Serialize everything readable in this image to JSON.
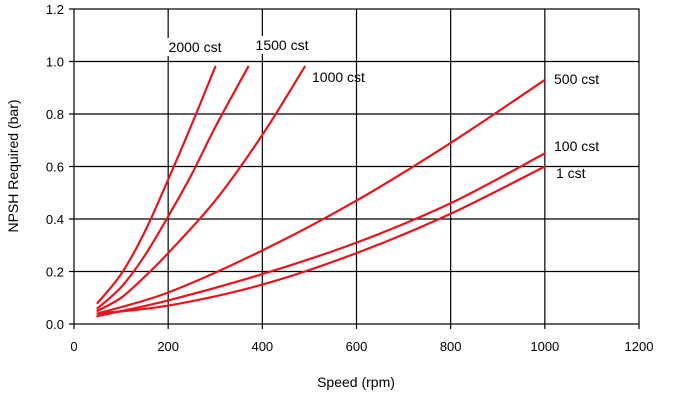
{
  "chart_data": {
    "type": "line",
    "title": "",
    "xlabel": "Speed (rpm)",
    "ylabel": "NPSH Required (bar)",
    "xlim": [
      0,
      1200
    ],
    "ylim": [
      0,
      1.2
    ],
    "xticks": [
      0,
      200,
      400,
      600,
      800,
      1000,
      1200
    ],
    "yticks": [
      0.0,
      0.2,
      0.4,
      0.6,
      0.8,
      1.0,
      1.2
    ],
    "xtick_labels": [
      "0",
      "200",
      "400",
      "600",
      "800",
      "1000",
      "1200"
    ],
    "ytick_labels": [
      "0.0",
      "0.2",
      "0.4",
      "0.6",
      "0.8",
      "1.0",
      "1.2"
    ],
    "grid": true,
    "legend": "none (series labelled directly on curves)",
    "line_color": "#e8141c",
    "series": [
      {
        "name": "2000 cst",
        "x": [
          50,
          100,
          150,
          200,
          250,
          300
        ],
        "y": [
          0.08,
          0.19,
          0.35,
          0.55,
          0.76,
          0.98
        ]
      },
      {
        "name": "1500 cst",
        "x": [
          50,
          100,
          150,
          200,
          250,
          300,
          370
        ],
        "y": [
          0.06,
          0.14,
          0.26,
          0.41,
          0.57,
          0.75,
          0.98
        ]
      },
      {
        "name": "1000 cst",
        "x": [
          50,
          100,
          150,
          200,
          300,
          400,
          490
        ],
        "y": [
          0.05,
          0.1,
          0.18,
          0.27,
          0.47,
          0.72,
          0.98
        ]
      },
      {
        "name": "500 cst",
        "x": [
          50,
          200,
          400,
          600,
          800,
          1000
        ],
        "y": [
          0.04,
          0.12,
          0.28,
          0.47,
          0.69,
          0.93
        ]
      },
      {
        "name": "100 cst",
        "x": [
          50,
          200,
          400,
          600,
          800,
          1000
        ],
        "y": [
          0.03,
          0.09,
          0.19,
          0.31,
          0.46,
          0.65
        ]
      },
      {
        "name": "1 cst",
        "x": [
          50,
          200,
          400,
          600,
          800,
          1000
        ],
        "y": [
          0.04,
          0.07,
          0.15,
          0.27,
          0.42,
          0.6
        ]
      }
    ]
  }
}
